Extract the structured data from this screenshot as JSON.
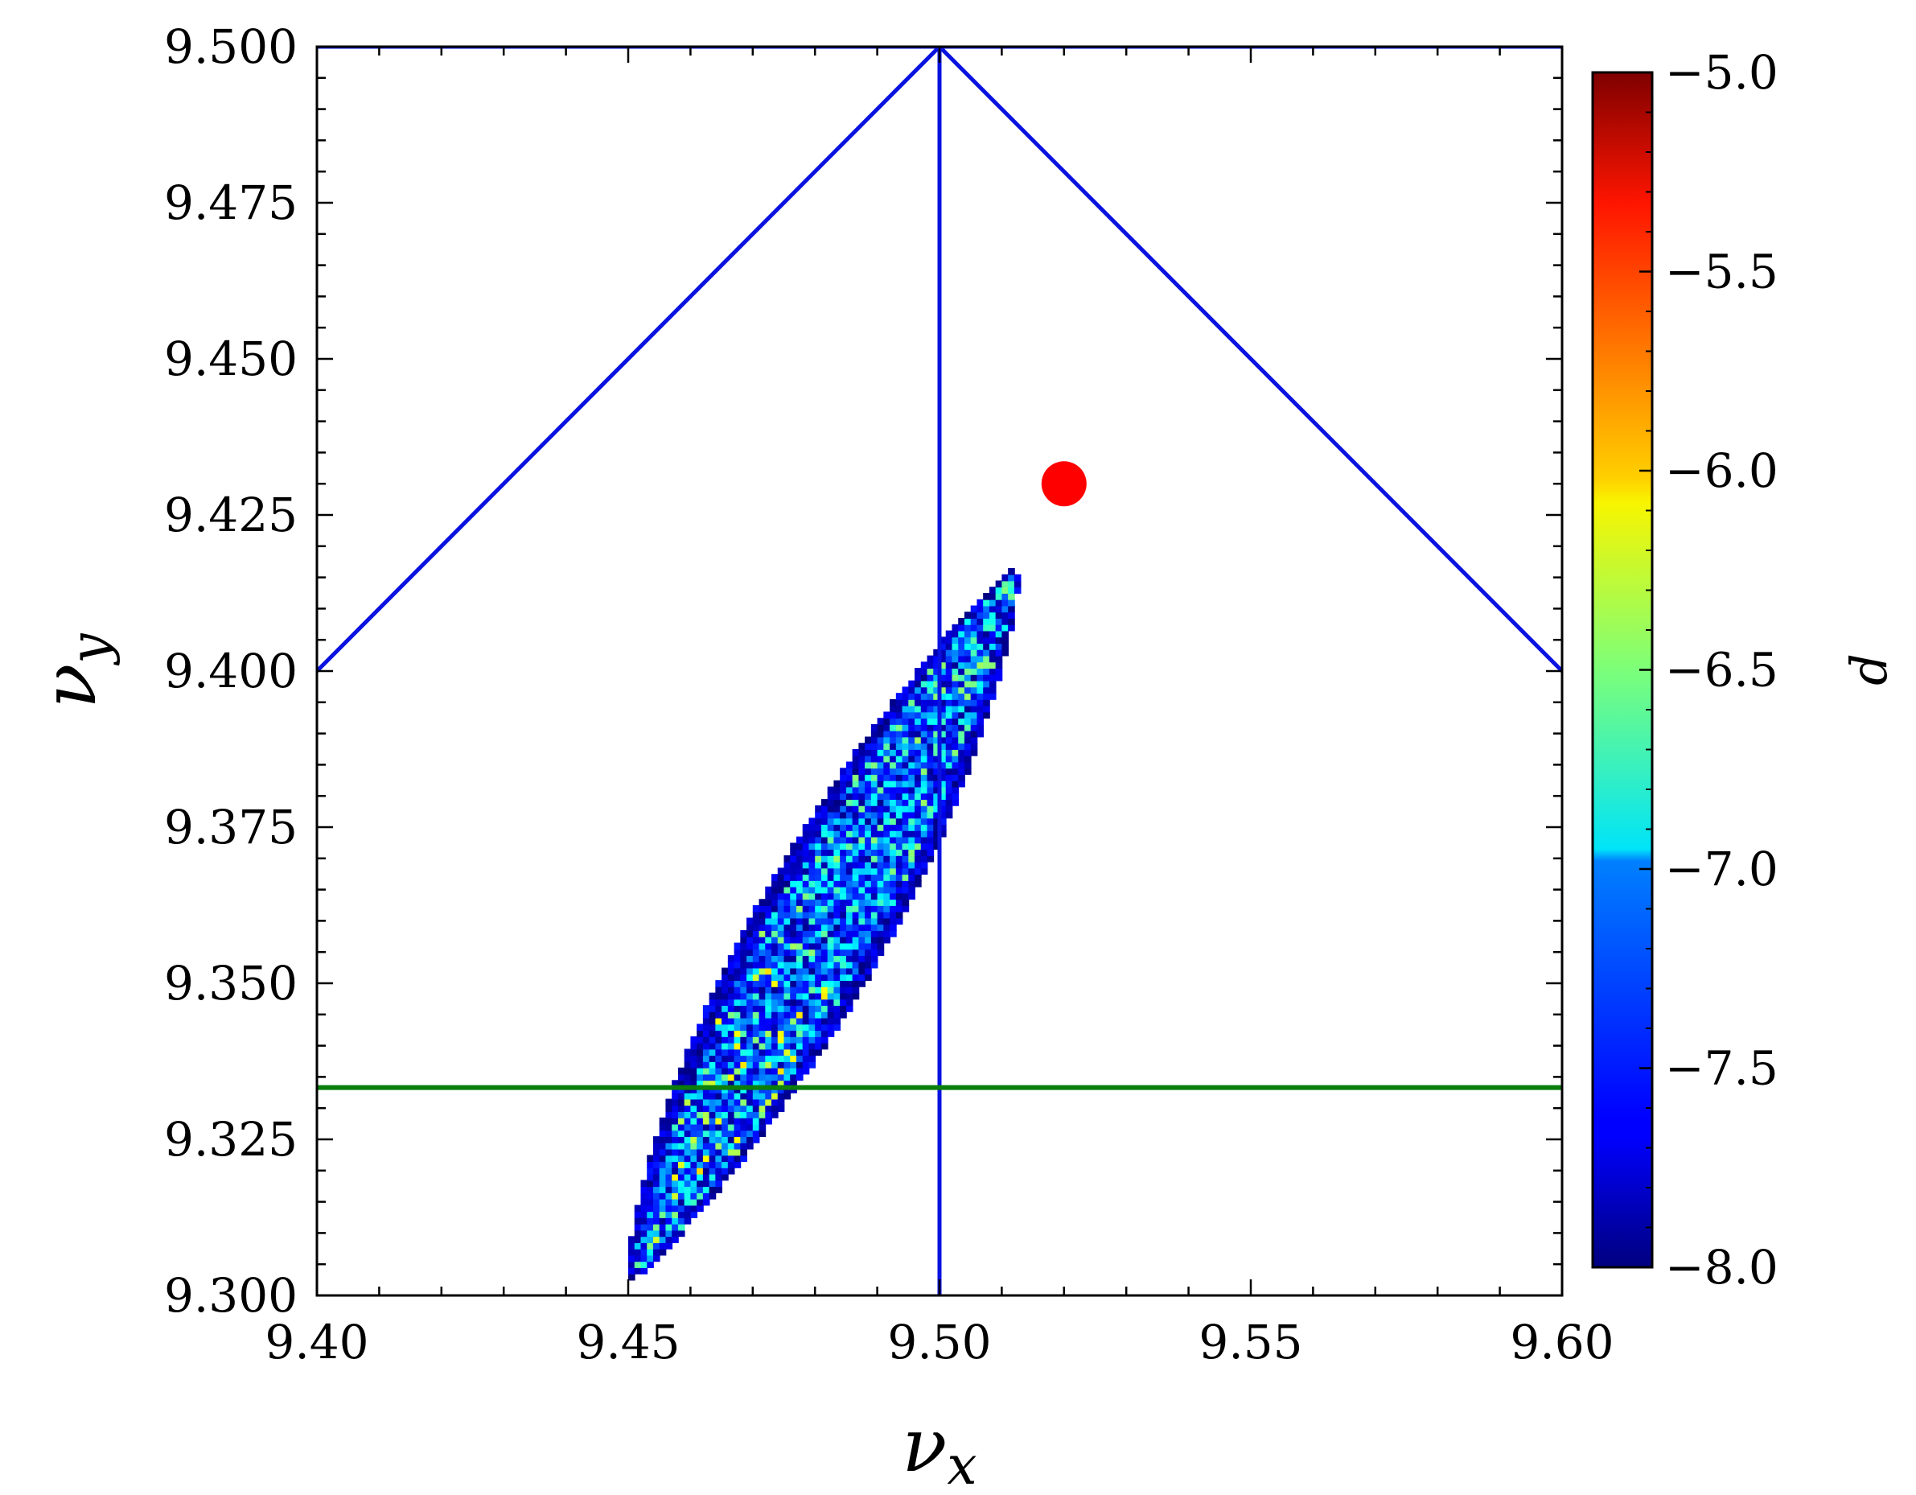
{
  "chart_data": {
    "type": "heatmap",
    "x_axis": {
      "label": "ν",
      "label_sub": "x",
      "range": [
        9.4,
        9.6
      ],
      "ticks": [
        9.4,
        9.45,
        9.5,
        9.55,
        9.6
      ],
      "tick_labels": [
        "9.40",
        "9.45",
        "9.50",
        "9.55",
        "9.60"
      ],
      "minor_step": 0.01
    },
    "y_axis": {
      "label": "ν",
      "label_sub": "y",
      "range": [
        9.3,
        9.5
      ],
      "ticks": [
        9.3,
        9.325,
        9.35,
        9.375,
        9.4,
        9.425,
        9.45,
        9.475,
        9.5
      ],
      "tick_labels": [
        "9.300",
        "9.325",
        "9.350",
        "9.375",
        "9.400",
        "9.425",
        "9.450",
        "9.475",
        "9.500"
      ],
      "minor_step": 0.005
    },
    "colorbar": {
      "label": "d",
      "range": [
        -8.0,
        -5.0
      ],
      "ticks": [
        -5.0,
        -5.5,
        -6.0,
        -6.5,
        -7.0,
        -7.5,
        -8.0
      ],
      "tick_labels": [
        "−5.0",
        "−5.5",
        "−6.0",
        "−6.5",
        "−7.0",
        "−7.5",
        "−8.0"
      ],
      "colormap": "jet"
    },
    "heatmap": {
      "description_region": "elongated diagonal band of tune-diffusion cells",
      "cell_size": 0.001,
      "center_line": {
        "start": [
          9.4505,
          9.3025
        ],
        "end": [
          9.5115,
          9.4155
        ]
      },
      "max_half_width_x": 0.0115,
      "value_range": [
        -8.0,
        -6.0
      ],
      "typical_value": -7.6
    },
    "lines": [
      {
        "name": "resonance-line-left-diagonal",
        "x": [
          9.4,
          9.5
        ],
        "y": [
          9.4,
          9.5
        ],
        "color": "#0a12e0"
      },
      {
        "name": "resonance-line-right-diagonal",
        "x": [
          9.5,
          9.6
        ],
        "y": [
          9.5,
          9.4
        ],
        "color": "#0a12e0"
      },
      {
        "name": "resonance-line-vertical",
        "x": [
          9.5,
          9.5
        ],
        "y": [
          9.3,
          9.5
        ],
        "color": "#0a12e0"
      },
      {
        "name": "resonance-line-top",
        "x": [
          9.4,
          9.6
        ],
        "y": [
          9.5,
          9.5
        ],
        "color": "#0a12e0"
      },
      {
        "name": "resonance-line-horizontal-green",
        "x": [
          9.4,
          9.6
        ],
        "y": [
          9.3333,
          9.3333
        ],
        "color": "#0a7d0a"
      }
    ],
    "points": [
      {
        "name": "working-point",
        "x": 9.52,
        "y": 9.43,
        "color": "#ff0000"
      }
    ]
  }
}
